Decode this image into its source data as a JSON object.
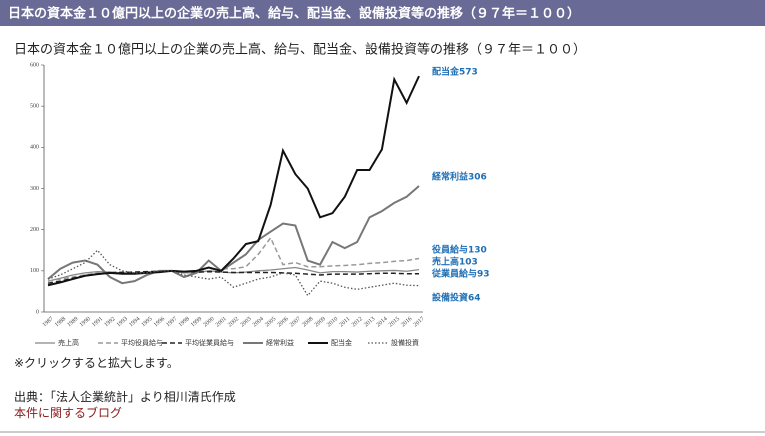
{
  "header": {
    "title": "日本の資本金１０億円以上の企業の売上高、給与、配当金、設備投資等の推移（９７年＝１００）"
  },
  "chart_data": {
    "type": "line",
    "title": "日本の資本金１０億円以上の企業の売上高、給与、配当金、設備投資等の推移（９７年＝１００）",
    "categories": [
      "1987",
      "1988",
      "1989",
      "1990",
      "1991",
      "1992",
      "1993",
      "1994",
      "1995",
      "1996",
      "1997",
      "1998",
      "1999",
      "2000",
      "2001",
      "2002",
      "2003",
      "2004",
      "2005",
      "2006",
      "2007",
      "2008",
      "2009",
      "2010",
      "2011",
      "2012",
      "2013",
      "2014",
      "2015",
      "2016",
      "2017"
    ],
    "ylim": [
      0,
      600
    ],
    "yticks": [
      0,
      100,
      200,
      300,
      400,
      500,
      600
    ],
    "grid": false,
    "series": [
      {
        "name": "売上高",
        "color": "#888888",
        "dash": "solid",
        "width": 1.3,
        "values": [
          75,
          82,
          90,
          95,
          98,
          97,
          95,
          95,
          97,
          99,
          100,
          95,
          95,
          100,
          97,
          95,
          97,
          100,
          102,
          105,
          108,
          102,
          95,
          98,
          98,
          97,
          99,
          100,
          101,
          99,
          103
        ]
      },
      {
        "name": "平均役員給与",
        "color": "#999999",
        "dash": "dashed",
        "width": 1.5,
        "values": [
          75,
          80,
          85,
          90,
          95,
          97,
          97,
          96,
          97,
          98,
          100,
          95,
          98,
          100,
          105,
          105,
          110,
          140,
          180,
          115,
          120,
          110,
          110,
          112,
          113,
          115,
          118,
          120,
          123,
          125,
          130
        ]
      },
      {
        "name": "平均従業員給与",
        "color": "#222222",
        "dash": "dashed",
        "width": 1.5,
        "values": [
          70,
          75,
          82,
          88,
          92,
          95,
          96,
          97,
          98,
          99,
          100,
          98,
          97,
          98,
          97,
          96,
          96,
          96,
          96,
          95,
          94,
          92,
          90,
          92,
          92,
          92,
          93,
          94,
          94,
          93,
          93
        ]
      },
      {
        "name": "経常利益",
        "color": "#777777",
        "dash": "solid",
        "width": 2,
        "values": [
          80,
          105,
          120,
          125,
          115,
          85,
          70,
          75,
          90,
          100,
          100,
          85,
          95,
          125,
          100,
          120,
          140,
          175,
          195,
          215,
          210,
          125,
          115,
          170,
          155,
          170,
          230,
          245,
          265,
          280,
          306
        ]
      },
      {
        "name": "配当金",
        "color": "#111111",
        "dash": "solid",
        "width": 2,
        "values": [
          65,
          72,
          80,
          88,
          92,
          95,
          93,
          93,
          95,
          97,
          100,
          98,
          100,
          108,
          100,
          130,
          165,
          172,
          260,
          392,
          335,
          300,
          230,
          240,
          280,
          345,
          345,
          395,
          565,
          508,
          573
        ]
      },
      {
        "name": "設備投資",
        "color": "#555555",
        "dash": "dotted",
        "width": 1.3,
        "values": [
          80,
          90,
          105,
          120,
          150,
          115,
          100,
          95,
          95,
          100,
          100,
          90,
          85,
          80,
          85,
          60,
          70,
          80,
          85,
          95,
          90,
          40,
          75,
          70,
          60,
          55,
          60,
          65,
          70,
          65,
          64
        ]
      }
    ],
    "annotations": [
      "配当金573",
      "経常利益306",
      "役員給与130",
      "売上高103",
      "従業員給与93",
      "設備投資64"
    ]
  },
  "note": "※クリックすると拡大します。",
  "source": "出典：「法人企業統計」より相川清氏作成",
  "link": "本件に関するブログ"
}
